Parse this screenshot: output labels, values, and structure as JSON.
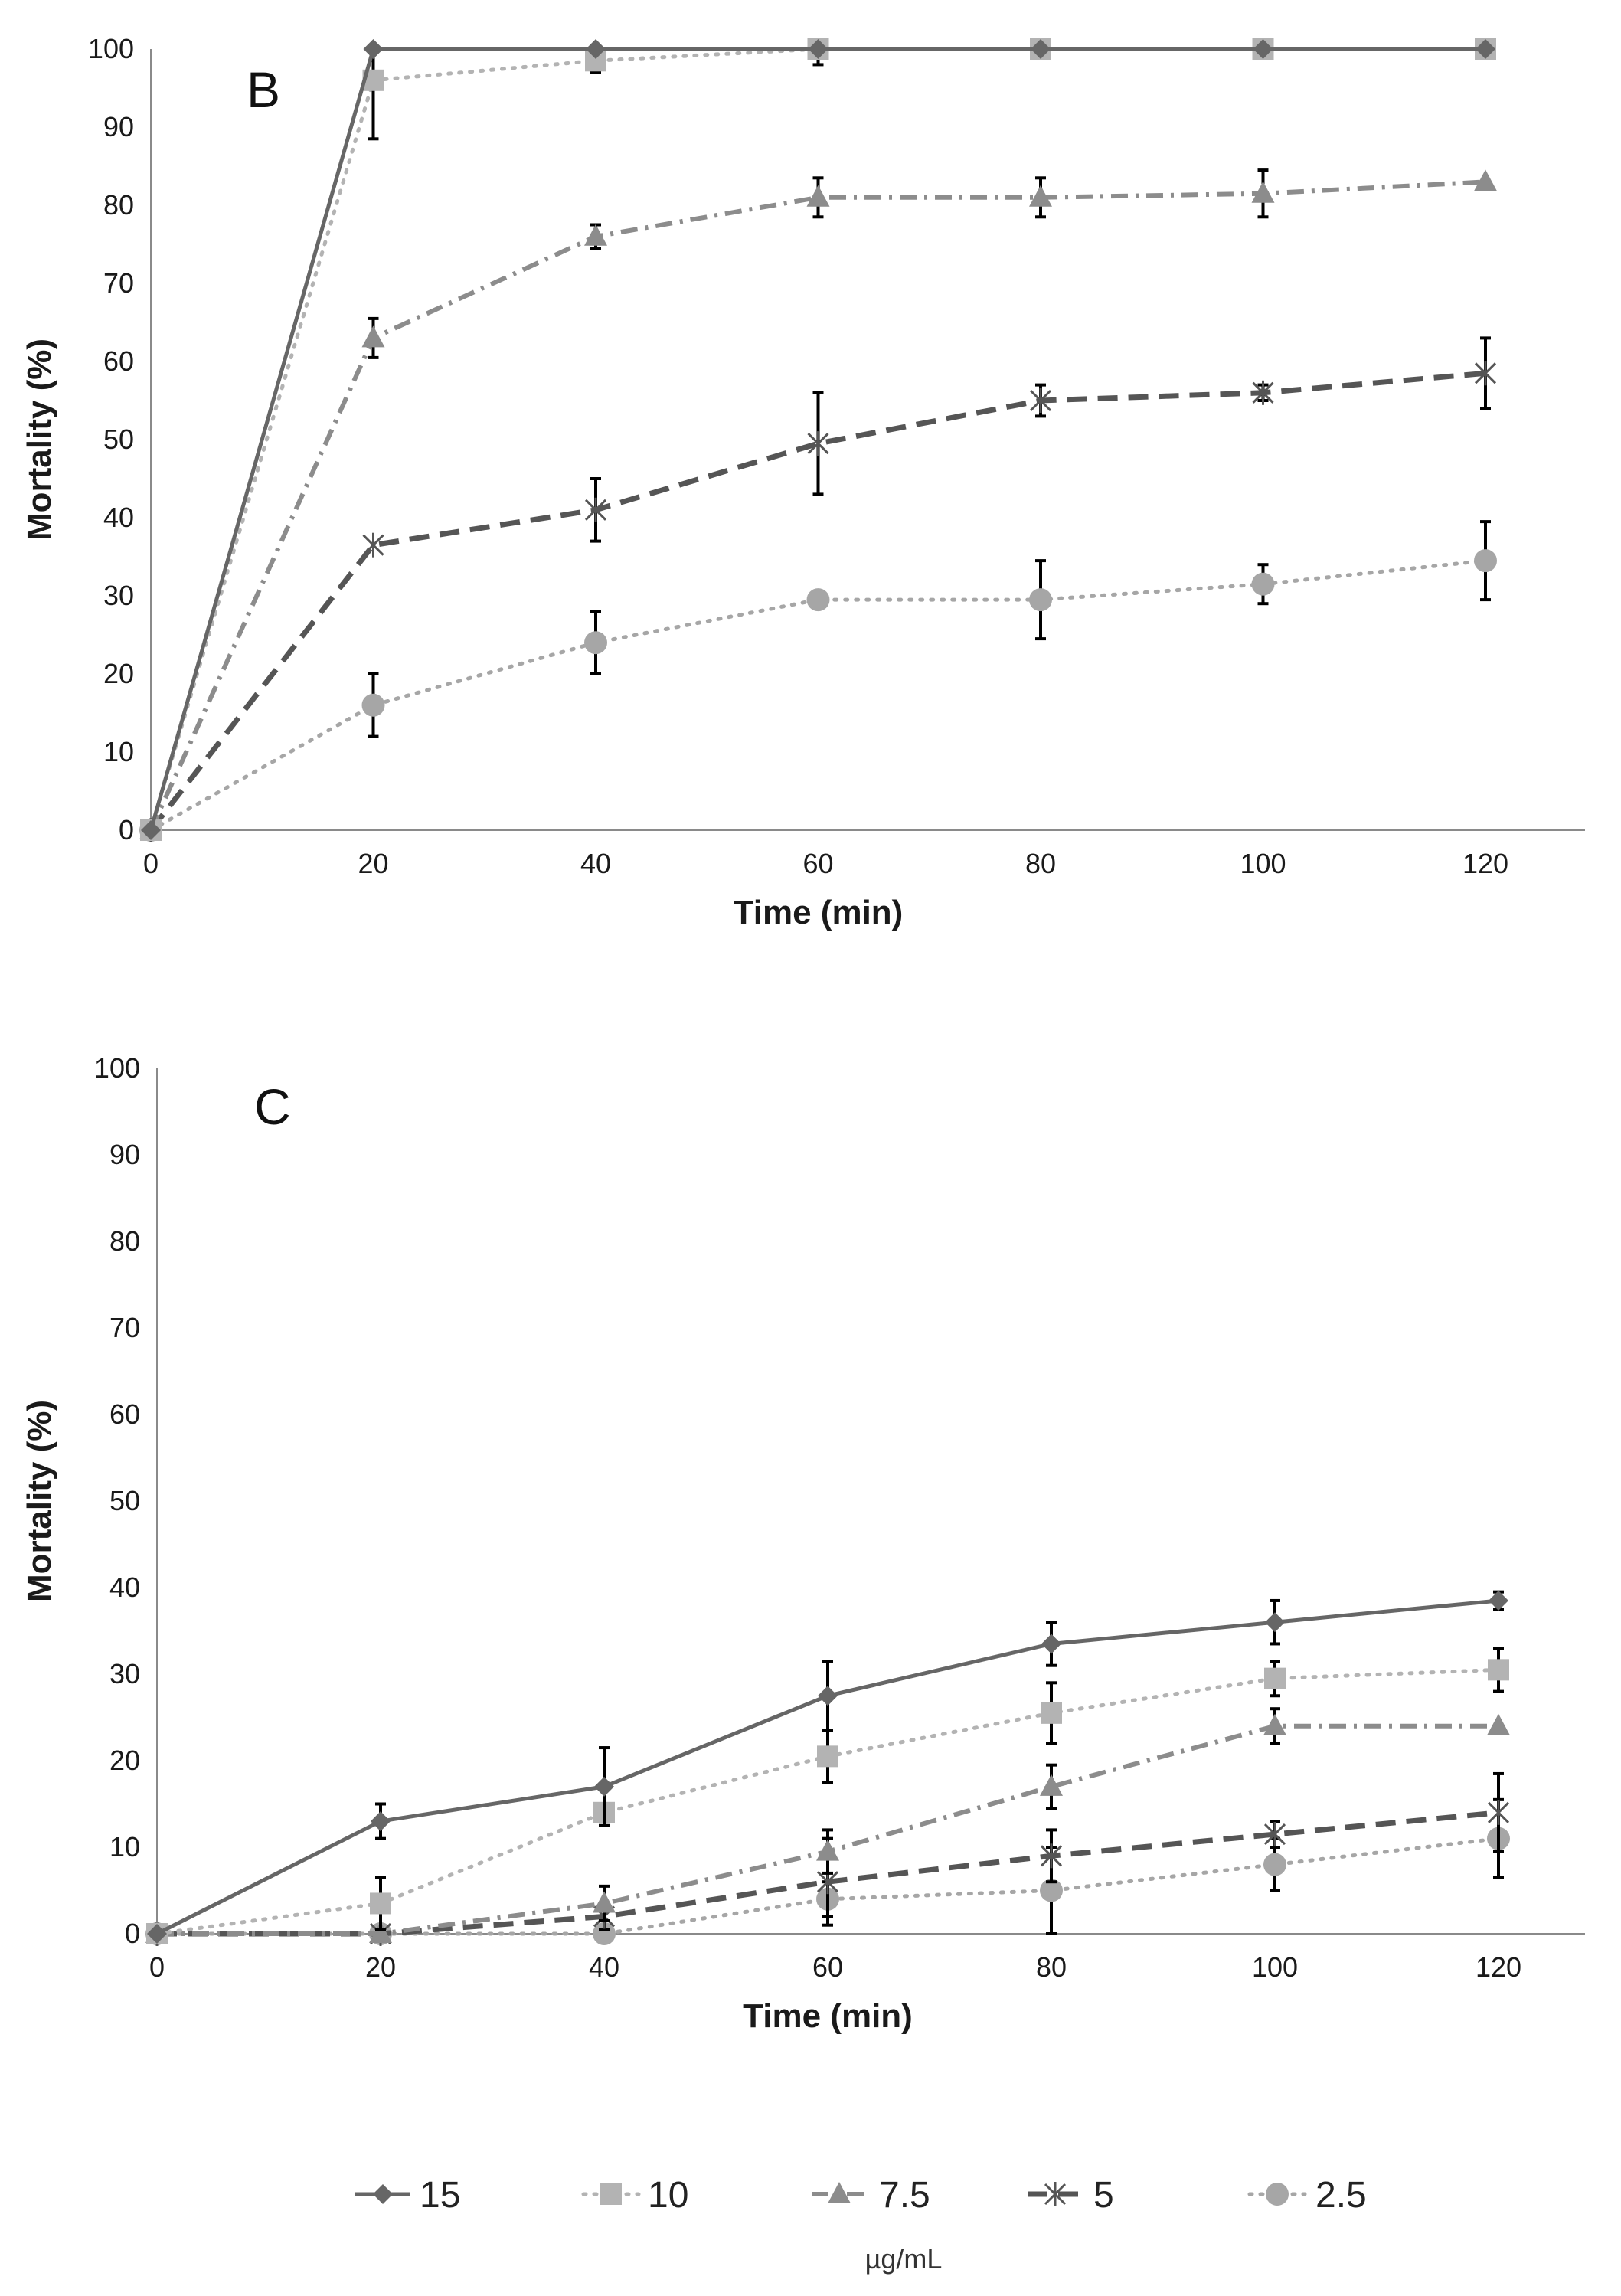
{
  "chart_data": [
    {
      "type": "line",
      "panel": "B",
      "xlabel": "Time (min)",
      "ylabel": "Mortality (%)",
      "xlim": [
        0,
        120
      ],
      "ylim": [
        0,
        100
      ],
      "xticks": [
        0,
        20,
        40,
        60,
        80,
        100,
        120
      ],
      "yticks": [
        0,
        10,
        20,
        30,
        40,
        50,
        60,
        70,
        80,
        90,
        100
      ],
      "grid": false,
      "x": [
        0,
        20,
        40,
        60,
        80,
        100,
        120
      ],
      "series": [
        {
          "name": "15",
          "values": [
            0,
            100,
            100,
            100,
            100,
            100,
            100
          ],
          "errors": [
            0,
            0,
            0,
            0,
            0,
            0,
            0
          ]
        },
        {
          "name": "10",
          "values": [
            0,
            96,
            98.5,
            100,
            100,
            100,
            100
          ],
          "errors": [
            0,
            7.5,
            1.5,
            2,
            0,
            0,
            0
          ]
        },
        {
          "name": "7.5",
          "values": [
            0,
            63,
            76,
            81,
            81,
            81.5,
            83
          ],
          "errors": [
            0,
            2.5,
            1.5,
            2.5,
            2.5,
            3,
            0
          ]
        },
        {
          "name": "5",
          "values": [
            0,
            36.5,
            41,
            49.5,
            55,
            56,
            58.5
          ],
          "errors": [
            0,
            0,
            4,
            6.5,
            2,
            1,
            4.5
          ]
        },
        {
          "name": "2.5",
          "values": [
            0,
            16,
            24,
            29.5,
            29.5,
            31.5,
            34.5
          ],
          "errors": [
            0,
            4,
            4,
            0,
            5,
            2.5,
            5
          ]
        }
      ]
    },
    {
      "type": "line",
      "panel": "C",
      "xlabel": "Time (min)",
      "ylabel": "Mortality (%)",
      "xlim": [
        0,
        120
      ],
      "ylim": [
        0,
        100
      ],
      "xticks": [
        0,
        20,
        40,
        60,
        80,
        100,
        120
      ],
      "yticks": [
        0,
        10,
        20,
        30,
        40,
        50,
        60,
        70,
        80,
        90,
        100
      ],
      "grid": false,
      "x": [
        0,
        20,
        40,
        60,
        80,
        100,
        120
      ],
      "series": [
        {
          "name": "15",
          "values": [
            0,
            13,
            17,
            27.5,
            33.5,
            36,
            38.5
          ],
          "errors": [
            0,
            2,
            4.5,
            4,
            2.5,
            2.5,
            1
          ]
        },
        {
          "name": "10",
          "values": [
            0,
            3.5,
            14,
            20.5,
            25.5,
            29.5,
            30.5
          ],
          "errors": [
            0,
            3,
            0,
            3,
            3.5,
            2,
            2.5
          ]
        },
        {
          "name": "7.5",
          "values": [
            0,
            0,
            3.5,
            9.5,
            17,
            24,
            24
          ],
          "errors": [
            0,
            0,
            2,
            2.5,
            2.5,
            2,
            0
          ]
        },
        {
          "name": "5",
          "values": [
            0,
            0,
            2,
            6,
            9,
            11.5,
            14
          ],
          "errors": [
            0,
            0,
            1.5,
            5,
            3,
            1.5,
            4.5
          ]
        },
        {
          "name": "2.5",
          "values": [
            0,
            0,
            0,
            4,
            5,
            8,
            11
          ],
          "errors": [
            0,
            0,
            0,
            2,
            5,
            3,
            4.5
          ]
        }
      ]
    }
  ],
  "legend": {
    "items": [
      {
        "label": "15",
        "color": "#666666",
        "dash": "solid",
        "marker": "diamond"
      },
      {
        "label": "10",
        "color": "#b3b3b3",
        "dash": "dot",
        "marker": "square"
      },
      {
        "label": "7.5",
        "color": "#8c8c8c",
        "dash": "dashdot",
        "marker": "triangle"
      },
      {
        "label": "5",
        "color": "#555555",
        "dash": "dash",
        "marker": "star"
      },
      {
        "label": "2.5",
        "color": "#a6a6a6",
        "dash": "dot",
        "marker": "circle"
      }
    ],
    "unit": "µg/mL"
  }
}
